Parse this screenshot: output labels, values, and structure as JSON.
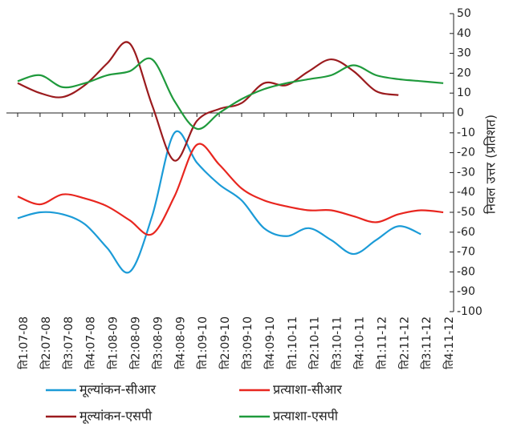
{
  "chart_data": {
    "type": "line",
    "y_label": "निवल उत्तर (प्रतिशत)",
    "categories": [
      "ति1:07-08",
      "ति2:07-08",
      "ति3:07-08",
      "ति4:07-08",
      "ति1:08-09",
      "ति2:08-09",
      "ति3:08-09",
      "ति4:08-09",
      "ति1:09-10",
      "ति2:09-10",
      "ति3:09-10",
      "ति4:09-10",
      "ति1:10-11",
      "ति2:10-11",
      "ति3:10-11",
      "ति4:10-11",
      "ति1:11-12",
      "ति2:11-12",
      "ति3:11-12",
      "ति4:11-12"
    ],
    "series": [
      {
        "name": "मूल्यांकन-सीआर",
        "color": "#1b9bd7",
        "values": [
          -53,
          -50,
          -51,
          -56,
          -68,
          -80,
          -52,
          -10,
          -25,
          -36,
          -44,
          -58,
          -62,
          -58,
          -64,
          -71,
          -64,
          -57,
          -61,
          null
        ]
      },
      {
        "name": "प्रत्याशा-सीआर",
        "color": "#e8261f",
        "values": [
          -42,
          -46,
          -41,
          -43,
          -47,
          -54,
          -61,
          -42,
          -16,
          -26,
          -38,
          -44,
          -47,
          -49,
          -49,
          -52,
          -55,
          -51,
          -49,
          -50
        ]
      },
      {
        "name": "मूल्यांकन-एसपी",
        "color": "#9b1b1e",
        "values": [
          15,
          10,
          8,
          14,
          25,
          35,
          4,
          -24,
          -4,
          2,
          5,
          15,
          14,
          21,
          27,
          21,
          11,
          9,
          null,
          null
        ]
      },
      {
        "name": "प्रत्याशा-एसपी",
        "color": "#1f9a3c",
        "values": [
          16,
          19,
          13,
          15,
          19,
          21,
          27,
          6,
          -8,
          0,
          7,
          12,
          15,
          17,
          19,
          24,
          19,
          17,
          16,
          15
        ]
      }
    ],
    "ylim": [
      -100,
      50
    ],
    "yticks": [
      50,
      40,
      30,
      20,
      10,
      0,
      -10,
      -20,
      -30,
      -40,
      -50,
      -60,
      -70,
      -80,
      -90,
      -100
    ]
  }
}
